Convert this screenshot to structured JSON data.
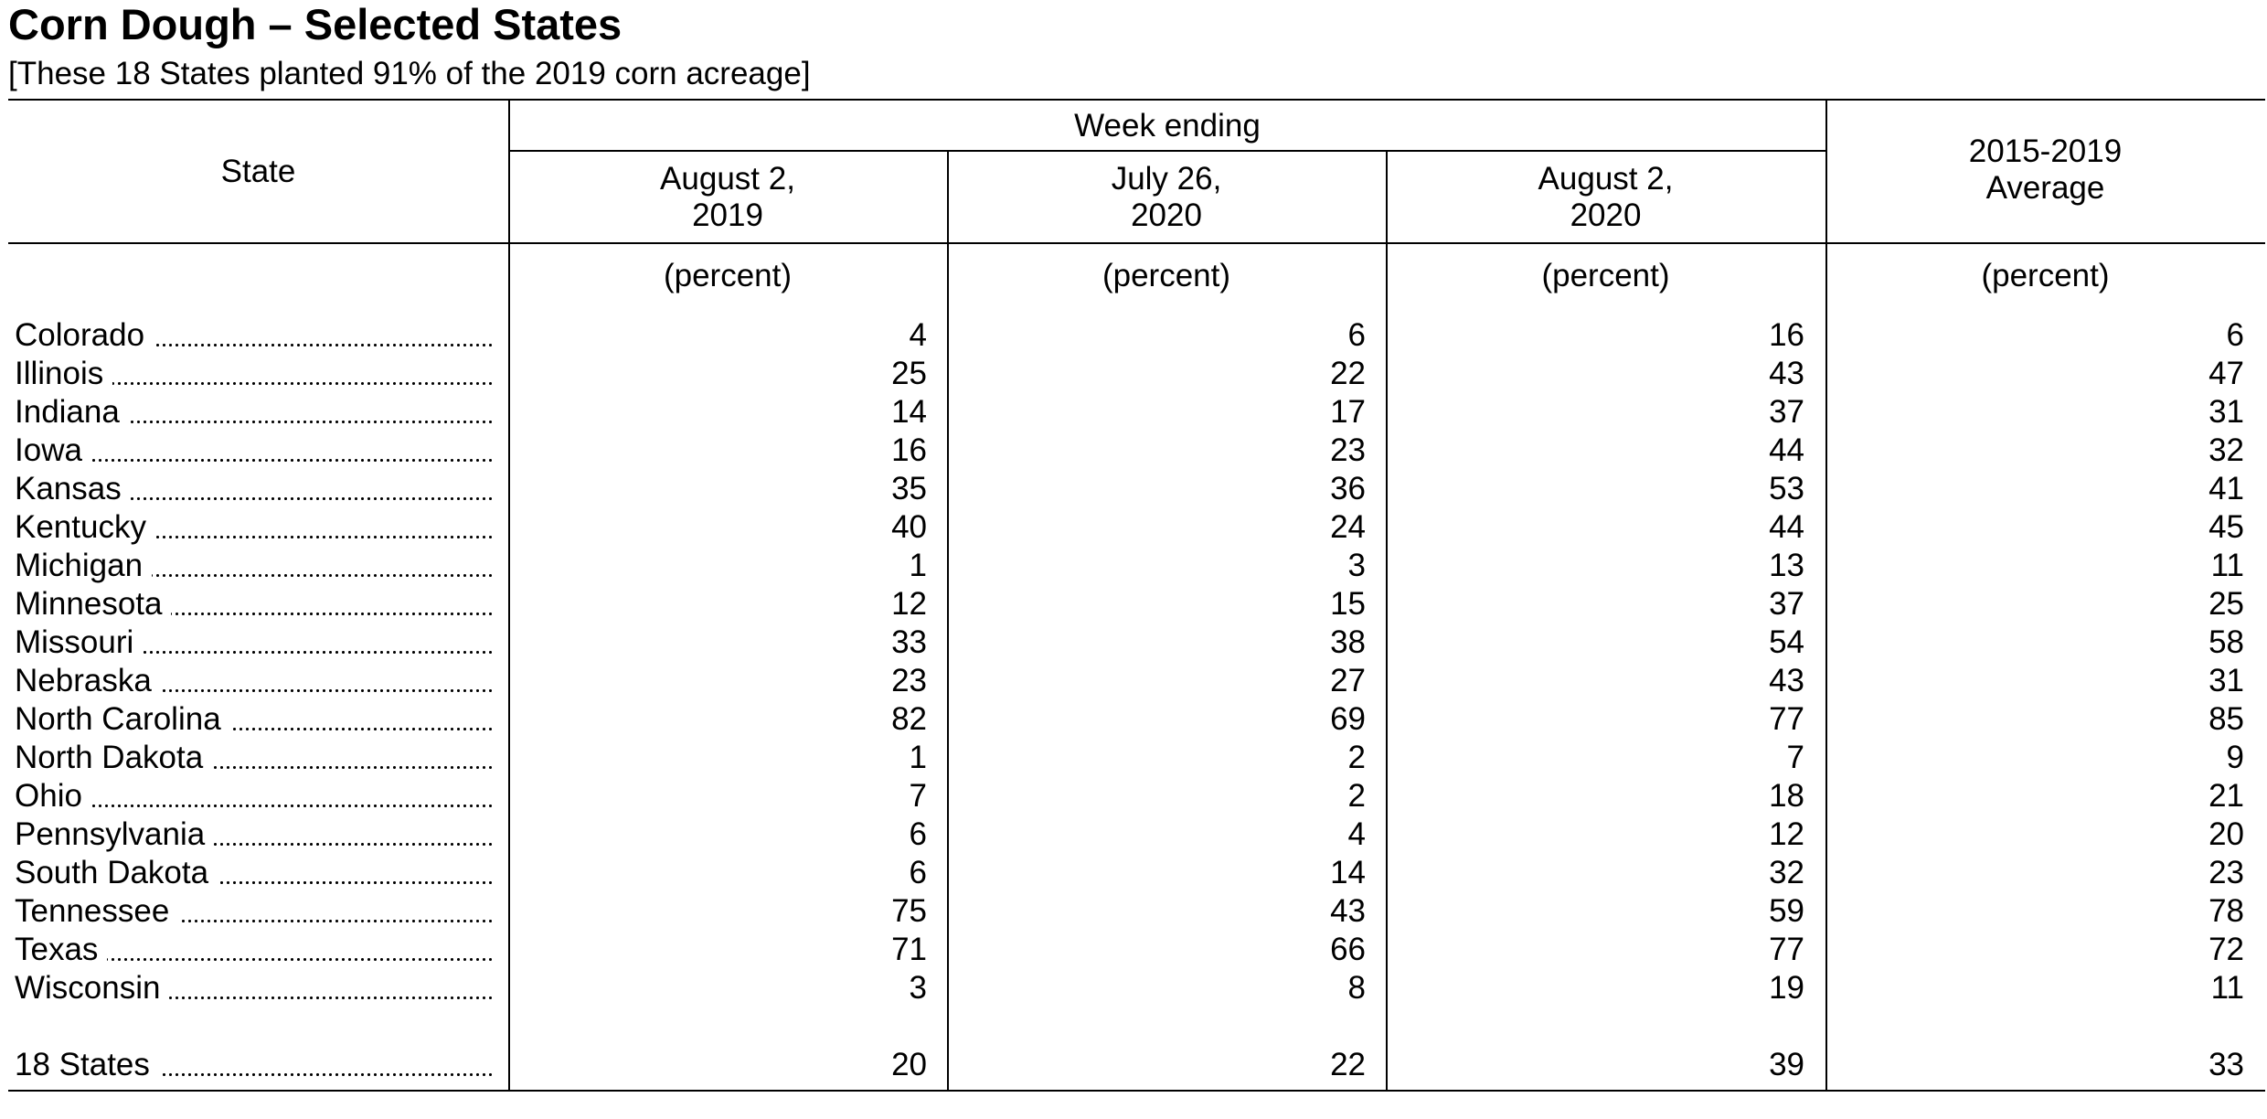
{
  "title": "Corn Dough – Selected States",
  "subtitle": "[These 18 States planted 91% of the 2019 corn acreage]",
  "table": {
    "state_header": "State",
    "group_header": "Week ending",
    "columns": [
      {
        "line1": "August 2,",
        "line2": "2019",
        "unit": "(percent)"
      },
      {
        "line1": "July 26,",
        "line2": "2020",
        "unit": "(percent)"
      },
      {
        "line1": "August 2,",
        "line2": "2020",
        "unit": "(percent)"
      },
      {
        "line1": "2015-2019",
        "line2": "Average",
        "unit": "(percent)"
      }
    ],
    "rows": [
      {
        "state": "Colorado",
        "values": [
          "4",
          "6",
          "16",
          "6"
        ]
      },
      {
        "state": "Illinois",
        "values": [
          "25",
          "22",
          "43",
          "47"
        ]
      },
      {
        "state": "Indiana",
        "values": [
          "14",
          "17",
          "37",
          "31"
        ]
      },
      {
        "state": "Iowa",
        "values": [
          "16",
          "23",
          "44",
          "32"
        ]
      },
      {
        "state": "Kansas",
        "values": [
          "35",
          "36",
          "53",
          "41"
        ]
      },
      {
        "state": "Kentucky",
        "values": [
          "40",
          "24",
          "44",
          "45"
        ]
      },
      {
        "state": "Michigan",
        "values": [
          "1",
          "3",
          "13",
          "11"
        ]
      },
      {
        "state": "Minnesota",
        "values": [
          "12",
          "15",
          "37",
          "25"
        ]
      },
      {
        "state": "Missouri",
        "values": [
          "33",
          "38",
          "54",
          "58"
        ]
      },
      {
        "state": "Nebraska",
        "values": [
          "23",
          "27",
          "43",
          "31"
        ]
      },
      {
        "state": "North Carolina",
        "values": [
          "82",
          "69",
          "77",
          "85"
        ]
      },
      {
        "state": "North Dakota",
        "values": [
          "1",
          "2",
          "7",
          "9"
        ]
      },
      {
        "state": "Ohio",
        "values": [
          "7",
          "2",
          "18",
          "21"
        ]
      },
      {
        "state": "Pennsylvania",
        "values": [
          "6",
          "4",
          "12",
          "20"
        ]
      },
      {
        "state": "South Dakota",
        "values": [
          "6",
          "14",
          "32",
          "23"
        ]
      },
      {
        "state": "Tennessee",
        "values": [
          "75",
          "43",
          "59",
          "78"
        ]
      },
      {
        "state": "Texas",
        "values": [
          "71",
          "66",
          "77",
          "72"
        ]
      },
      {
        "state": "Wisconsin",
        "values": [
          "3",
          "8",
          "19",
          "11"
        ]
      }
    ],
    "total": {
      "state": "18 States",
      "values": [
        "20",
        "22",
        "39",
        "33"
      ]
    }
  }
}
